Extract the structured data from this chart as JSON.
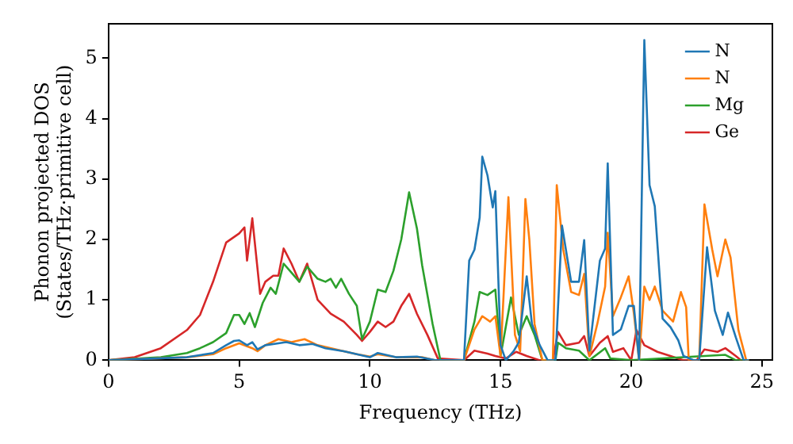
{
  "chart_data": {
    "type": "line",
    "xlabel": "Frequency (THz)",
    "ylabel": "Phonon projected DOS\n(States/THz·primitive cell)",
    "xlim": [
      0,
      25.4
    ],
    "ylim": [
      0,
      5.57
    ],
    "xticks": [
      0,
      5,
      10,
      15,
      20,
      25
    ],
    "yticks": [
      0,
      1,
      2,
      3,
      4,
      5
    ],
    "legend": "top right",
    "marker": "none",
    "line_style": "solid",
    "series": [
      {
        "name": "N",
        "color": "#1f77b4",
        "x": [
          0,
          3,
          4,
          4.5,
          4.8,
          5,
          5.3,
          5.5,
          5.7,
          6,
          6.5,
          6.8,
          7.3,
          7.8,
          8.3,
          9,
          9.5,
          10,
          10.3,
          11,
          11.8,
          12.5,
          13.6,
          13.8,
          14,
          14.2,
          14.3,
          14.5,
          14.7,
          14.8,
          15,
          15.2,
          15.5,
          15.7,
          16,
          16.2,
          16.5,
          16.8,
          17.1,
          17.35,
          17.7,
          18,
          18.2,
          18.4,
          18.8,
          19,
          19.1,
          19.3,
          19.6,
          19.9,
          20.1,
          20.3,
          20.5,
          20.7,
          20.9,
          21.2,
          21.5,
          21.8,
          22,
          22.4,
          22.6,
          22.9,
          23.2,
          23.5,
          23.7,
          24,
          24.3,
          24.5
        ],
        "values": [
          0,
          0.05,
          0.12,
          0.25,
          0.32,
          0.33,
          0.25,
          0.3,
          0.18,
          0.25,
          0.28,
          0.3,
          0.25,
          0.27,
          0.2,
          0.15,
          0.1,
          0.05,
          0.12,
          0.05,
          0.06,
          0,
          0,
          1.65,
          1.83,
          2.36,
          3.37,
          3.06,
          2.53,
          2.8,
          0.25,
          0,
          0.15,
          0.3,
          1.39,
          0.6,
          0.25,
          0,
          0,
          2.23,
          1.3,
          1.3,
          1.99,
          0.16,
          1.65,
          1.85,
          3.26,
          0.42,
          0.51,
          0.9,
          0.9,
          0,
          5.3,
          2.9,
          2.55,
          0.69,
          0.55,
          0.33,
          0.07,
          0,
          0,
          1.87,
          0.82,
          0.42,
          0.79,
          0.38,
          0,
          0
        ]
      },
      {
        "name": "N",
        "color": "#ff7f0e",
        "x": [
          0,
          3,
          4,
          4.5,
          5,
          5.5,
          5.7,
          6,
          6.5,
          7,
          7.5,
          8,
          9,
          9.5,
          10,
          10.3,
          11,
          12,
          12.5,
          13.6,
          14,
          14.3,
          14.6,
          14.8,
          15,
          15.3,
          15.55,
          15.75,
          15.95,
          16.1,
          16.3,
          16.6,
          17,
          17.15,
          17.4,
          17.7,
          18,
          18.2,
          18.4,
          18.7,
          19,
          19.1,
          19.3,
          19.6,
          19.9,
          20.1,
          20.3,
          20.5,
          20.7,
          20.9,
          21.2,
          21.6,
          21.9,
          22.1,
          22.2,
          22.6,
          22.8,
          23.1,
          23.3,
          23.6,
          23.8,
          24.1,
          24.4,
          24.5
        ],
        "values": [
          0,
          0.05,
          0.1,
          0.2,
          0.28,
          0.2,
          0.15,
          0.25,
          0.35,
          0.3,
          0.35,
          0.25,
          0.15,
          0.1,
          0.06,
          0.1,
          0.05,
          0.05,
          0,
          0,
          0.51,
          0.73,
          0.64,
          0.73,
          0.07,
          2.7,
          0.42,
          0.15,
          2.67,
          2,
          0.6,
          0,
          0,
          2.9,
          1.83,
          1.13,
          1.08,
          1.43,
          0.07,
          0.6,
          1.22,
          2.11,
          0.73,
          1.04,
          1.39,
          0.78,
          0,
          1.22,
          1,
          1.22,
          0.82,
          0.64,
          1.13,
          0.88,
          0,
          0,
          2.58,
          1.83,
          1.39,
          2,
          1.7,
          0.5,
          0,
          0
        ]
      },
      {
        "name": "Mg",
        "color": "#2ca02c",
        "x": [
          0,
          2,
          3,
          3.5,
          4,
          4.5,
          4.8,
          5,
          5.2,
          5.4,
          5.6,
          5.9,
          6.2,
          6.4,
          6.7,
          7,
          7.3,
          7.6,
          8,
          8.3,
          8.5,
          8.7,
          8.9,
          9.2,
          9.5,
          9.7,
          10,
          10.3,
          10.6,
          10.9,
          11.2,
          11.5,
          11.8,
          12,
          12.4,
          12.7,
          13.6,
          14,
          14.2,
          14.5,
          14.8,
          15,
          15.4,
          15.7,
          16,
          16.3,
          16.6,
          17.1,
          17.2,
          17.5,
          18,
          18.4,
          19,
          19.2,
          20,
          22.8,
          23.6,
          24,
          24.5
        ],
        "values": [
          0,
          0.05,
          0.12,
          0.2,
          0.3,
          0.45,
          0.75,
          0.75,
          0.6,
          0.78,
          0.55,
          0.95,
          1.2,
          1.1,
          1.6,
          1.45,
          1.3,
          1.55,
          1.35,
          1.3,
          1.35,
          1.2,
          1.35,
          1.1,
          0.9,
          0.35,
          0.64,
          1.17,
          1.13,
          1.48,
          2,
          2.78,
          2.18,
          1.57,
          0.6,
          0,
          0,
          0.64,
          1.13,
          1.08,
          1.17,
          0.07,
          1.04,
          0.42,
          0.73,
          0.42,
          0,
          0,
          0.29,
          0.2,
          0.16,
          0,
          0.2,
          0.03,
          0,
          0.07,
          0.09,
          0,
          0
        ]
      },
      {
        "name": "Ge",
        "color": "#d62728",
        "x": [
          0,
          1,
          2,
          3,
          3.5,
          4,
          4.5,
          5,
          5.2,
          5.3,
          5.5,
          5.8,
          6,
          6.3,
          6.5,
          6.7,
          7,
          7.3,
          7.6,
          8,
          8.5,
          9,
          9.5,
          9.7,
          10,
          10.3,
          10.6,
          10.9,
          11.2,
          11.5,
          11.8,
          12.2,
          12.6,
          13.6,
          14,
          14.5,
          14.8,
          15.2,
          15.6,
          16,
          16.5,
          17,
          17.2,
          17.5,
          18,
          18.2,
          18.4,
          18.8,
          19.1,
          19.3,
          19.7,
          20,
          20.2,
          20.5,
          21,
          21.5,
          22,
          22.5,
          22.8,
          23.3,
          23.6,
          24,
          24.2,
          24.5
        ],
        "values": [
          0,
          0.05,
          0.2,
          0.5,
          0.75,
          1.3,
          1.95,
          2.1,
          2.2,
          1.65,
          2.35,
          1.1,
          1.3,
          1.4,
          1.4,
          1.85,
          1.6,
          1.3,
          1.6,
          1.0,
          0.77,
          0.64,
          0.42,
          0.32,
          0.47,
          0.64,
          0.55,
          0.64,
          0.9,
          1.1,
          0.77,
          0.42,
          0.03,
          0,
          0.16,
          0.11,
          0.07,
          0.03,
          0.14,
          0.07,
          0,
          0,
          0.47,
          0.25,
          0.29,
          0.4,
          0.07,
          0.29,
          0.4,
          0.14,
          0.2,
          0,
          0.5,
          0.25,
          0.14,
          0.07,
          0,
          0,
          0.18,
          0.14,
          0.2,
          0.07,
          0,
          0
        ]
      }
    ]
  }
}
